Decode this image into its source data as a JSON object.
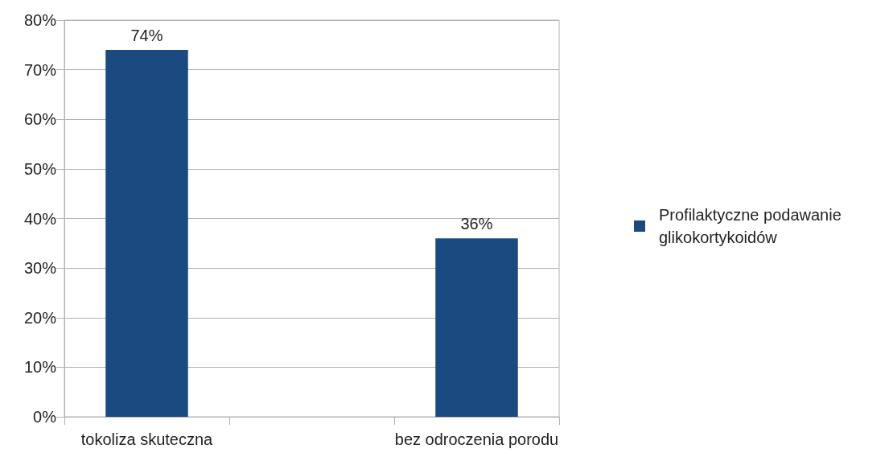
{
  "chart_data": {
    "type": "bar",
    "categories": [
      "tokoliza skuteczna",
      null,
      "bez odroczenia porodu"
    ],
    "series": [
      {
        "name": "Profilaktyczne podawanie glikokortykoidów",
        "color": "#1a4a80",
        "values": [
          74,
          null,
          36
        ],
        "value_labels": [
          "74%",
          null,
          "36%"
        ]
      }
    ],
    "ylim": [
      0,
      80
    ],
    "yticks": [
      {
        "value": 0,
        "label": "0%"
      },
      {
        "value": 10,
        "label": "10%"
      },
      {
        "value": 20,
        "label": "20%"
      },
      {
        "value": 30,
        "label": "30%"
      },
      {
        "value": 40,
        "label": "40%"
      },
      {
        "value": 50,
        "label": "50%"
      },
      {
        "value": 60,
        "label": "60%"
      },
      {
        "value": 70,
        "label": "70%"
      },
      {
        "value": 80,
        "label": "80%"
      }
    ],
    "grid": "y",
    "legend": "right"
  }
}
